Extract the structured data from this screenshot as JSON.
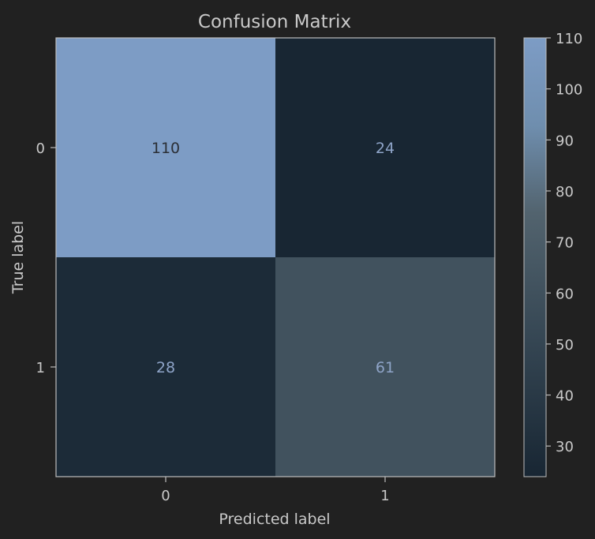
{
  "chart_data": {
    "type": "heatmap",
    "title": "Confusion Matrix",
    "xlabel": "Predicted label",
    "ylabel": "True label",
    "x_categories": [
      "0",
      "1"
    ],
    "y_categories": [
      "0",
      "1"
    ],
    "values": [
      [
        110,
        24
      ],
      [
        28,
        61
      ]
    ],
    "colorbar": {
      "range": [
        24,
        110
      ],
      "ticks": [
        30,
        40,
        50,
        60,
        70,
        80,
        90,
        100,
        110
      ],
      "colors": [
        "#182633",
        "#7d9cc5"
      ]
    },
    "text_colors": {
      "on_light": "#2b2f36",
      "on_dark": "#8ea4c8"
    }
  }
}
